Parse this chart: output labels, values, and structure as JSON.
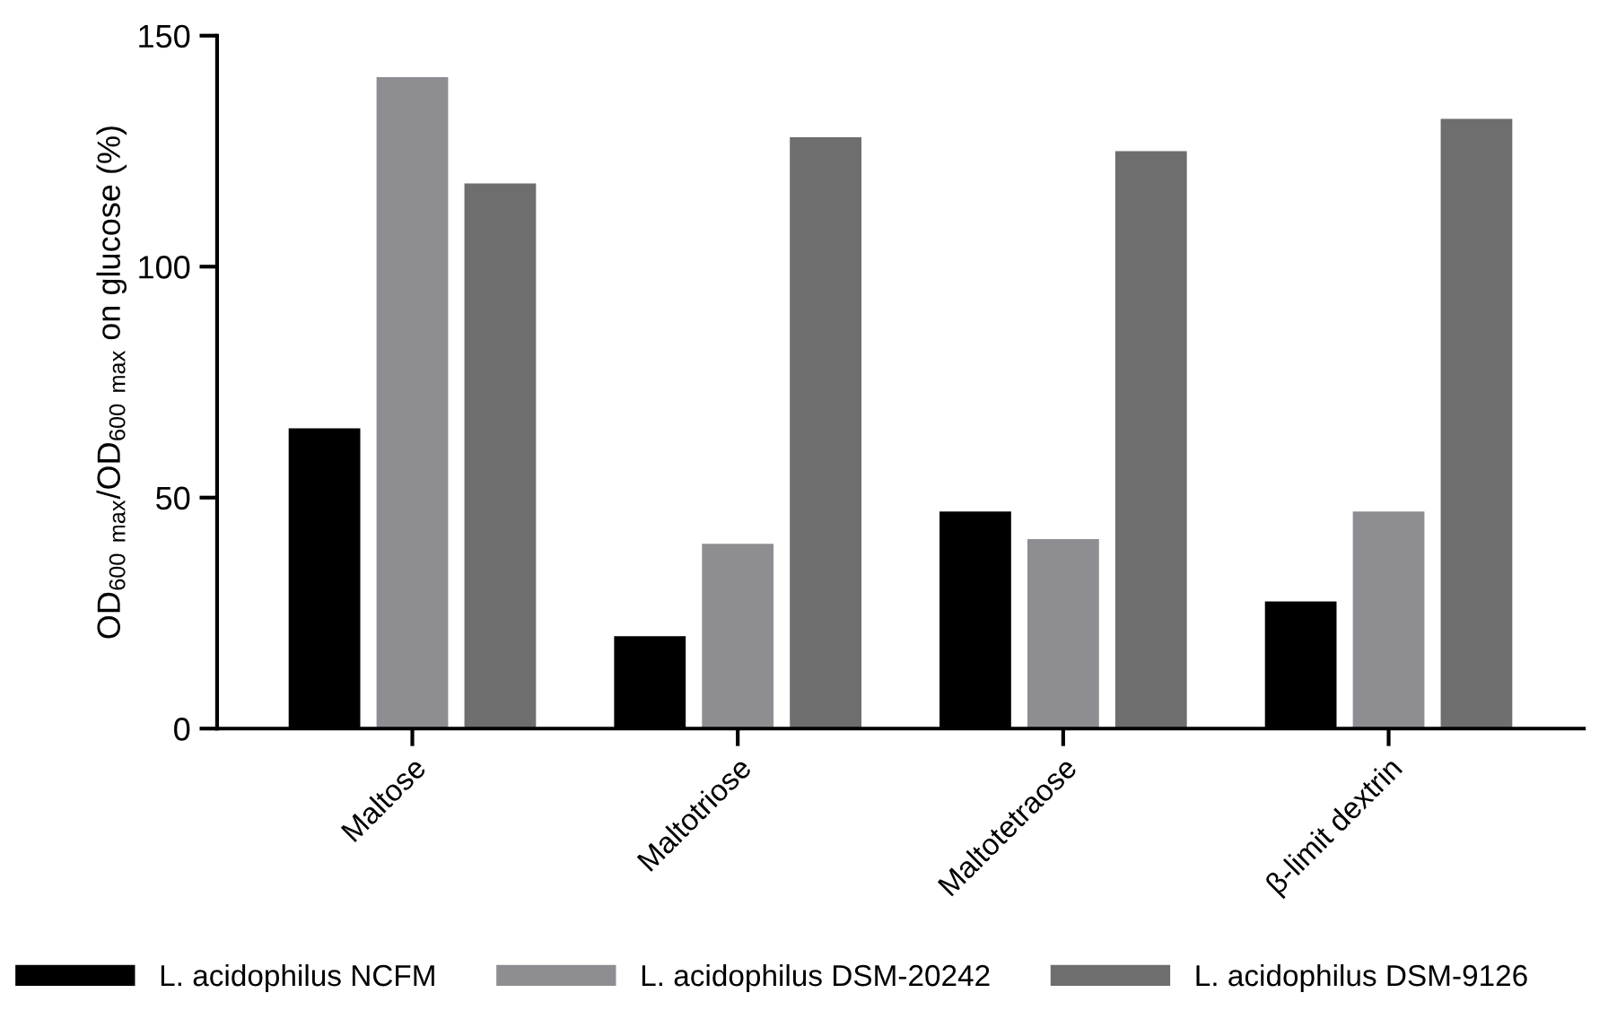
{
  "chart_data": {
    "type": "bar",
    "ylabel": "OD$_{600}$ $_{max}$/OD$_{600}$ $_{max}$ on glucose (%)",
    "categories": [
      "Maltose",
      "Maltotriose",
      "Maltotetraose",
      "β-limit dextrin"
    ],
    "series": [
      {
        "name": "L. acidophilus NCFM",
        "color": "#000000",
        "values": [
          65,
          20,
          47,
          27.5
        ]
      },
      {
        "name": "L. acidophilus DSM-20242",
        "color": "#8e8e92",
        "values": [
          141,
          40,
          41,
          47
        ]
      },
      {
        "name": "L. acidophilus DSM-9126",
        "color": "#6e6e6e",
        "values": [
          118,
          128,
          125,
          132
        ]
      }
    ],
    "ylim": [
      0,
      150
    ],
    "yticks": [
      0,
      50,
      100,
      150
    ],
    "grid": false,
    "legend": "bottom"
  }
}
